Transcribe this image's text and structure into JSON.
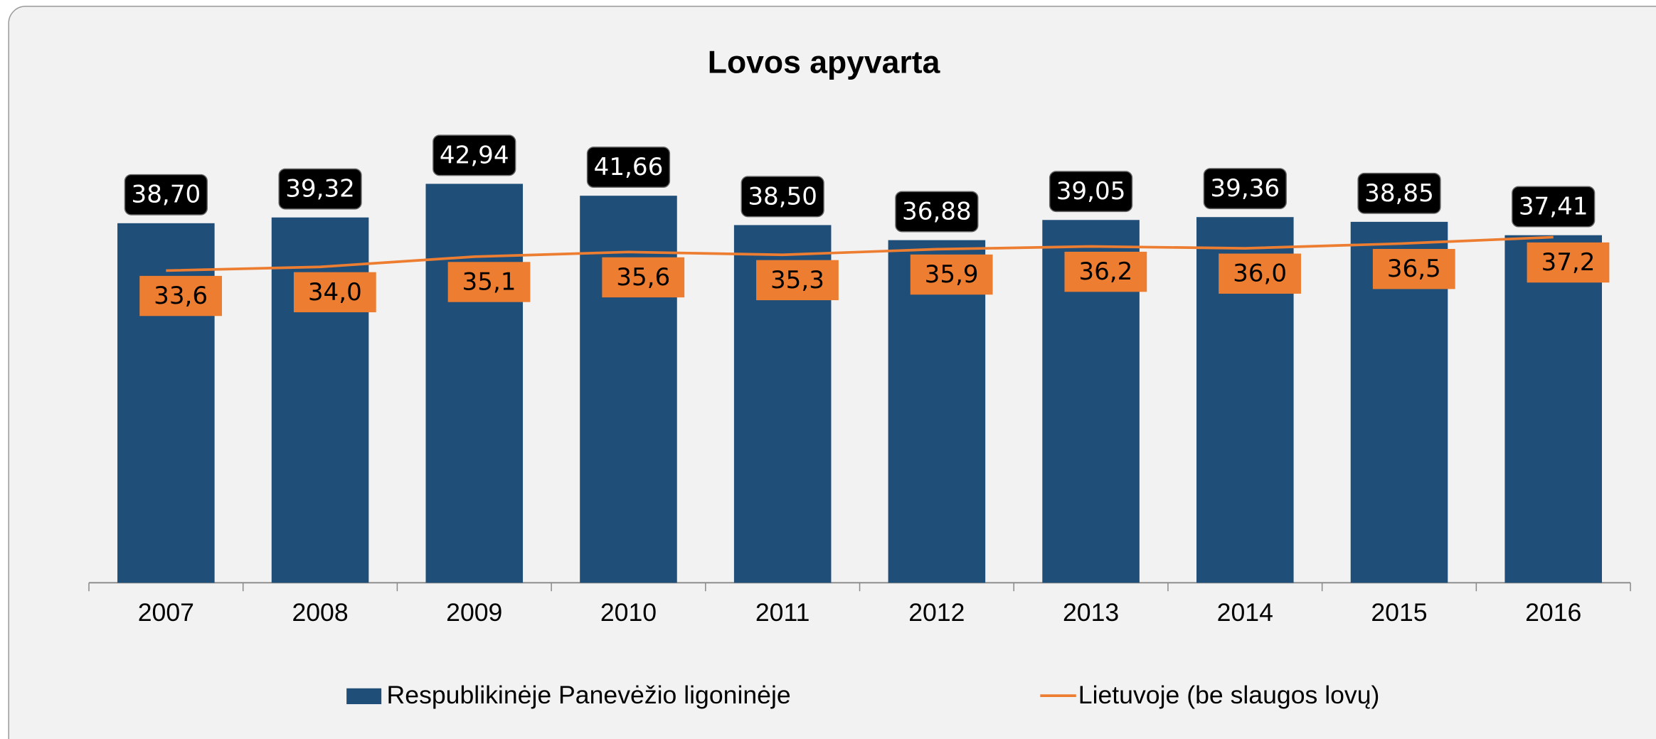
{
  "chart_data": {
    "type": "bar",
    "title": "Lovos apyvarta",
    "categories": [
      "2007",
      "2008",
      "2009",
      "2010",
      "2011",
      "2012",
      "2013",
      "2014",
      "2015",
      "2016"
    ],
    "ylim": [
      0,
      50
    ],
    "series": [
      {
        "name": "Respublikinėje Panevėžio ligoninėje",
        "type": "bar",
        "color": "#1f4e79",
        "values": [
          38.7,
          39.32,
          42.94,
          41.66,
          38.5,
          36.88,
          39.05,
          39.36,
          38.85,
          37.41
        ],
        "value_labels": [
          "38,70",
          "39,32",
          "42,94",
          "41,66",
          "38,50",
          "36,88",
          "39,05",
          "39,36",
          "38,85",
          "37,41"
        ]
      },
      {
        "name": "Lietuvoje (be slaugos lovų)",
        "type": "line",
        "color": "#ed7d31",
        "values": [
          33.6,
          34.0,
          35.1,
          35.6,
          35.3,
          35.9,
          36.2,
          36.0,
          36.5,
          37.2
        ],
        "value_labels": [
          "33,6",
          "34,0",
          "35,1",
          "35,6",
          "35,3",
          "35,9",
          "36,2",
          "36,0",
          "36,5",
          "37,2"
        ]
      }
    ]
  }
}
